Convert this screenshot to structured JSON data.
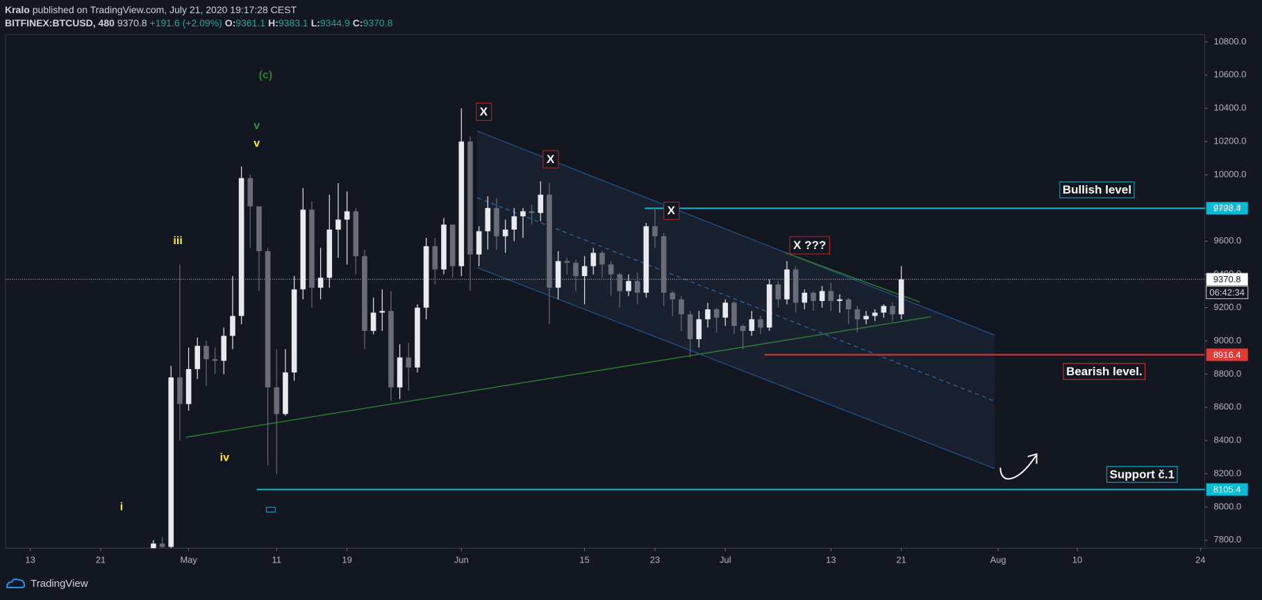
{
  "header": {
    "author": "Kralo",
    "published": "published on TradingView.com, July 21, 2020 19:17:28 CEST",
    "symbol": "BITFINEX:BTCUSD, 480",
    "last": "9370.8",
    "change": "+191.6 (+2.09%)",
    "ohlc": [
      {
        "label": "O:",
        "value": "9361.1"
      },
      {
        "label": "H:",
        "value": "9383.1"
      },
      {
        "label": "L:",
        "value": "9344.9"
      },
      {
        "label": "C:",
        "value": "9370.8"
      }
    ]
  },
  "chart_data": {
    "type": "candlestick",
    "x": [
      26,
      27,
      28,
      29,
      30,
      31,
      32,
      33,
      34,
      35,
      36,
      37,
      38,
      39,
      40,
      41,
      42,
      43,
      44,
      45,
      46,
      47,
      48,
      49,
      50,
      51,
      52,
      53,
      54,
      55,
      56,
      57,
      58,
      59,
      60,
      61,
      62,
      63,
      64,
      65,
      66,
      67,
      68,
      69,
      70,
      71,
      72,
      73,
      74,
      75,
      76,
      77,
      78,
      79,
      80,
      81,
      82,
      83,
      84,
      85,
      86,
      87,
      88,
      89,
      90,
      91,
      92,
      93,
      94,
      95,
      96,
      97,
      98,
      99,
      100,
      101,
      102,
      103,
      104,
      105,
      106,
      107,
      108,
      109,
      110,
      111
    ],
    "open": [
      7700,
      7780,
      7760,
      8780,
      8620,
      8830,
      8970,
      8890,
      8880,
      9030,
      9150,
      9980,
      9810,
      9540,
      8720,
      8560,
      8810,
      9310,
      9790,
      9320,
      9380,
      9670,
      9730,
      9780,
      9510,
      9060,
      9170,
      9180,
      8720,
      8900,
      8840,
      9200,
      9570,
      9430,
      9700,
      9450,
      10200,
      9520,
      9660,
      9800,
      9630,
      9670,
      9750,
      9780,
      9770,
      9880,
      9320,
      9480,
      9470,
      9390,
      9450,
      9530,
      9460,
      9400,
      9300,
      9360,
      9290,
      9690,
      9630,
      9290,
      9250,
      9160,
      9010,
      9130,
      9190,
      9140,
      9230,
      9090,
      9060,
      9130,
      9080,
      9340,
      9250,
      9430,
      9230,
      9290,
      9240,
      9300,
      9240,
      9250,
      9190,
      9130,
      9150,
      9170,
      9210,
      9160
    ],
    "high": [
      7800,
      7820,
      8850,
      9460,
      8960,
      9020,
      9000,
      8960,
      9080,
      9390,
      10050,
      10000,
      9810,
      9560,
      8950,
      8950,
      9390,
      9920,
      9840,
      9560,
      9880,
      9950,
      9900,
      9800,
      9550,
      9260,
      9310,
      9300,
      8980,
      8990,
      9220,
      9620,
      9620,
      9740,
      9700,
      10400,
      10230,
      9690,
      9870,
      9860,
      9730,
      9800,
      9800,
      9820,
      9960,
      9950,
      9540,
      9500,
      9490,
      9510,
      9560,
      9540,
      9480,
      9410,
      9400,
      9410,
      9710,
      9800,
      9650,
      9300,
      9270,
      9180,
      9180,
      9230,
      9200,
      9250,
      9240,
      9100,
      9180,
      9150,
      9370,
      9360,
      9480,
      9450,
      9310,
      9300,
      9330,
      9350,
      9280,
      9260,
      9210,
      9180,
      9190,
      9220,
      9230,
      9450
    ],
    "low": [
      7680,
      7700,
      7730,
      8400,
      8580,
      8770,
      8730,
      8800,
      8800,
      8950,
      9100,
      9560,
      9300,
      8250,
      8200,
      8550,
      8760,
      9250,
      9200,
      9250,
      9320,
      9500,
      9460,
      9400,
      8950,
      9040,
      9060,
      8640,
      8650,
      8700,
      8810,
      9130,
      9340,
      9400,
      9380,
      9390,
      9300,
      9450,
      9550,
      9550,
      9530,
      9600,
      9620,
      9700,
      9720,
      9100,
      9250,
      9400,
      9300,
      9220,
      9400,
      9380,
      9270,
      9200,
      9270,
      9220,
      9260,
      9560,
      9210,
      9150,
      9060,
      8900,
      8960,
      9080,
      9050,
      9090,
      9040,
      8950,
      9030,
      9040,
      9060,
      9200,
      9220,
      9170,
      9190,
      9180,
      9200,
      9180,
      9170,
      9100,
      9050,
      9100,
      9120,
      9140,
      9120,
      9130
    ],
    "close": [
      7780,
      7760,
      8780,
      8620,
      8830,
      8970,
      8890,
      8880,
      9030,
      9150,
      9980,
      9810,
      9540,
      8720,
      8560,
      8810,
      9310,
      9790,
      9320,
      9380,
      9670,
      9730,
      9780,
      9510,
      9060,
      9170,
      9180,
      8720,
      8900,
      8840,
      9200,
      9570,
      9430,
      9700,
      9450,
      10200,
      9520,
      9660,
      9800,
      9630,
      9670,
      9750,
      9780,
      9770,
      9880,
      9320,
      9480,
      9470,
      9390,
      9450,
      9530,
      9460,
      9400,
      9300,
      9360,
      9290,
      9690,
      9630,
      9290,
      9250,
      9160,
      9010,
      9130,
      9190,
      9140,
      9230,
      9090,
      9060,
      9130,
      9080,
      9340,
      9250,
      9430,
      9230,
      9290,
      9240,
      9300,
      9240,
      9250,
      9190,
      9130,
      9150,
      9170,
      9210,
      9160,
      9370
    ],
    "up_color": "#e8eaf0",
    "down_color": "#6a6d78",
    "xlim": [
      9.2,
      145.5
    ],
    "xticks": [
      {
        "value": 12,
        "label": "13"
      },
      {
        "value": 20,
        "label": "21"
      },
      {
        "value": 30,
        "label": "May"
      },
      {
        "value": 40,
        "label": "11"
      },
      {
        "value": 48,
        "label": "19"
      },
      {
        "value": 61,
        "label": "Jun"
      },
      {
        "value": 75,
        "label": "15"
      },
      {
        "value": 83,
        "label": "23"
      },
      {
        "value": 91,
        "label": "Jul"
      },
      {
        "value": 103,
        "label": "13"
      },
      {
        "value": 111,
        "label": "21"
      },
      {
        "value": 122,
        "label": "Aug"
      },
      {
        "value": 131,
        "label": "10"
      },
      {
        "value": 145,
        "label": "24"
      }
    ],
    "ylim": [
      7752,
      10844
    ],
    "yticks": [
      {
        "value": 7800,
        "label": "7800.0"
      },
      {
        "value": 8000,
        "label": "8000.0"
      },
      {
        "value": 8200,
        "label": "8200.0"
      },
      {
        "value": 8400,
        "label": "8400.0"
      },
      {
        "value": 8600,
        "label": "8600.0"
      },
      {
        "value": 8800,
        "label": "8800.0"
      },
      {
        "value": 9000,
        "label": "9000.0"
      },
      {
        "value": 9200,
        "label": "9200.0"
      },
      {
        "value": 9400,
        "label": "9400.0"
      },
      {
        "value": 9600,
        "label": "9600.0"
      },
      {
        "value": 9800,
        "label": "9800.0"
      },
      {
        "value": 10000,
        "label": "10000.0"
      },
      {
        "value": 10200,
        "label": "10200.0"
      },
      {
        "value": 10400,
        "label": "10400.0"
      },
      {
        "value": 10600,
        "label": "10600.0"
      },
      {
        "value": 10800,
        "label": "10800.0"
      }
    ],
    "last_price": 9370.8,
    "countdown": "06:42:34",
    "levels": [
      {
        "label": "Bullish level",
        "value": 9798.4,
        "color": "#00bcd4"
      },
      {
        "label": "Bearish level.",
        "value": 8916.4,
        "color": "#e53935"
      },
      {
        "label": "Support č.1",
        "value": 8105.4,
        "color": "#00bcd4"
      }
    ],
    "wave_labels": [
      {
        "text": "(c)",
        "color": "#2e7d32"
      },
      {
        "text": "v",
        "color": "#388e3c"
      },
      {
        "text": "v",
        "color": "#ffeb3b"
      },
      {
        "text": "iii",
        "color": "#ffeb3b"
      },
      {
        "text": "iv",
        "color": "#ffeb3b"
      },
      {
        "text": "i",
        "color": "#ffeb3b"
      }
    ],
    "x_labels": [
      {
        "text": "X",
        "color": "#c62828"
      },
      {
        "text": "X",
        "color": "#c62828"
      },
      {
        "text": "X",
        "color": "#c62828"
      },
      {
        "text": "X ???",
        "color": "#c62828"
      }
    ]
  },
  "footer": {
    "brand": "TradingView"
  }
}
